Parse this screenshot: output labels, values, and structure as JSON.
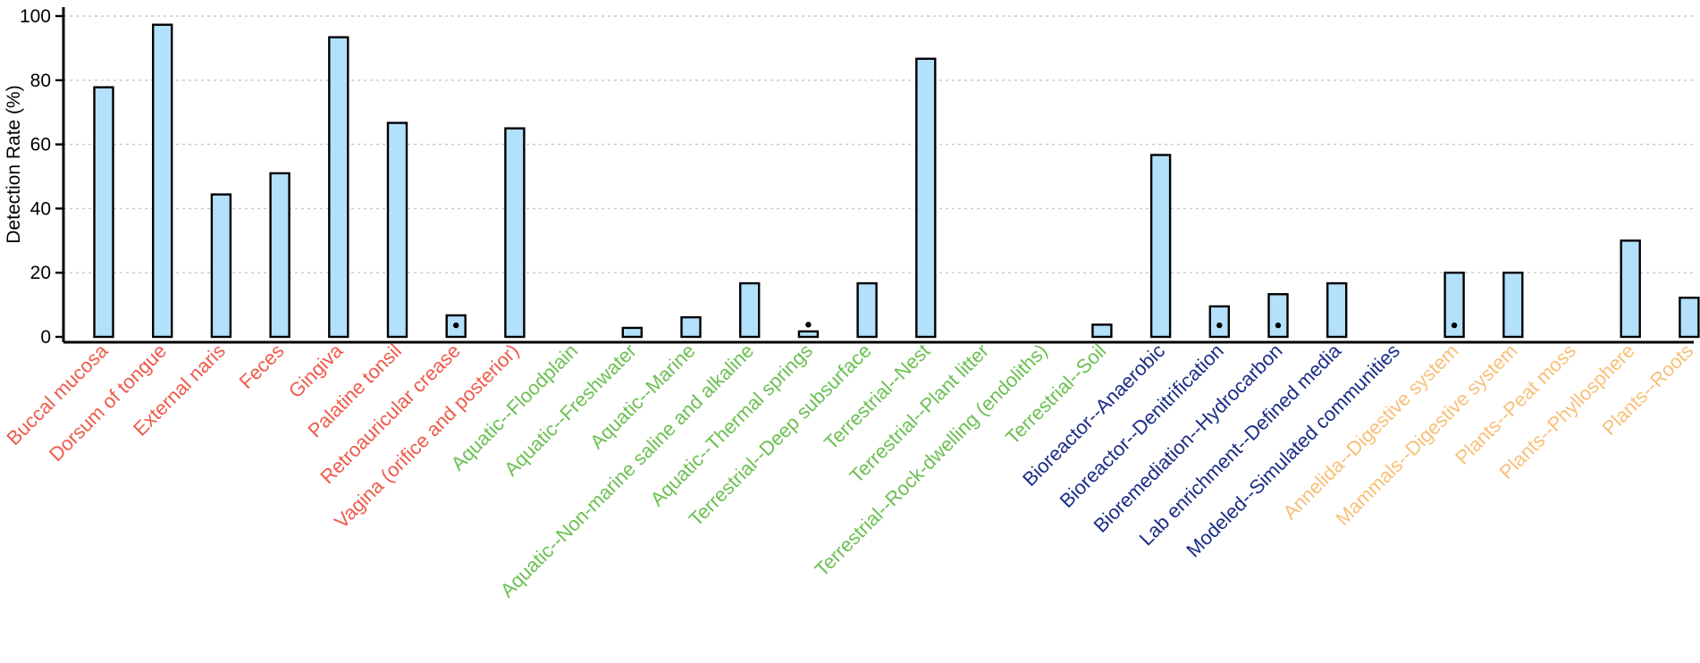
{
  "chart_data": {
    "type": "bar",
    "ylabel": "Detection Rate (%)",
    "xlabel": "",
    "ylim": [
      0,
      100
    ],
    "yticks": [
      "0",
      "20",
      "40",
      "60",
      "80",
      "100"
    ],
    "grid": "horizontal dotted",
    "categories": [
      "Buccal mucosa",
      "Dorsum of tongue",
      "External naris",
      "Feces",
      "Gingiva",
      "Palatine tonsil",
      "Retroauricular crease",
      "Vagina (orifice and posterior)",
      "Aquatic--Floodplain",
      "Aquatic--Freshwater",
      "Aquatic--Marine",
      "Aquatic--Non-marine saline and alkaline",
      "Aquatic--Thermal springs",
      "Terrestrial--Deep subsurface",
      "Terrestrial--Nest",
      "Terrestrial--Plant litter",
      "Terrestrial--Rock-dwelling (endoliths)",
      "Terrestrial--Soil",
      "Bioreactor--Anaerobic",
      "Bioreactor--Denitrification",
      "Bioremediation--Hydrocarbon",
      "Lab enrichment--Defined media",
      "Modeled--Simulated communities",
      "Annelida--Digestive system",
      "Mammals--Digestive system",
      "Plants--Peat moss",
      "Plants--Phyllosphere",
      "Plants--Roots"
    ],
    "values": [
      77.8,
      97.3,
      44.4,
      51.0,
      93.4,
      66.7,
      6.7,
      65.0,
      0,
      2.8,
      6.1,
      16.7,
      1.7,
      16.7,
      86.7,
      0,
      0,
      3.8,
      56.7,
      9.5,
      13.3,
      16.7,
      0,
      20.0,
      20.0,
      0,
      30.0,
      12.2
    ],
    "label_group": [
      "human",
      "human",
      "human",
      "human",
      "human",
      "human",
      "human",
      "human",
      "natural",
      "natural",
      "natural",
      "natural",
      "natural",
      "natural",
      "natural",
      "natural",
      "natural",
      "natural",
      "engineered",
      "engineered",
      "engineered",
      "engineered",
      "engineered",
      "host",
      "host",
      "host",
      "host",
      "host"
    ],
    "group_colors": {
      "human": "#ee5a4a",
      "natural": "#6cc052",
      "engineered": "#1b2c86",
      "host": "#f8c079"
    },
    "bar_color": "#b3e0fb",
    "markers": [
      {
        "category": "Retroauricular crease",
        "value": 3.6
      },
      {
        "category": "Aquatic--Thermal springs",
        "value": 3.8
      },
      {
        "category": "Bioreactor--Denitrification",
        "value": 3.6
      },
      {
        "category": "Bioremediation--Hydrocarbon",
        "value": 3.6
      },
      {
        "category": "Annelida--Digestive system",
        "value": 3.6
      }
    ]
  }
}
